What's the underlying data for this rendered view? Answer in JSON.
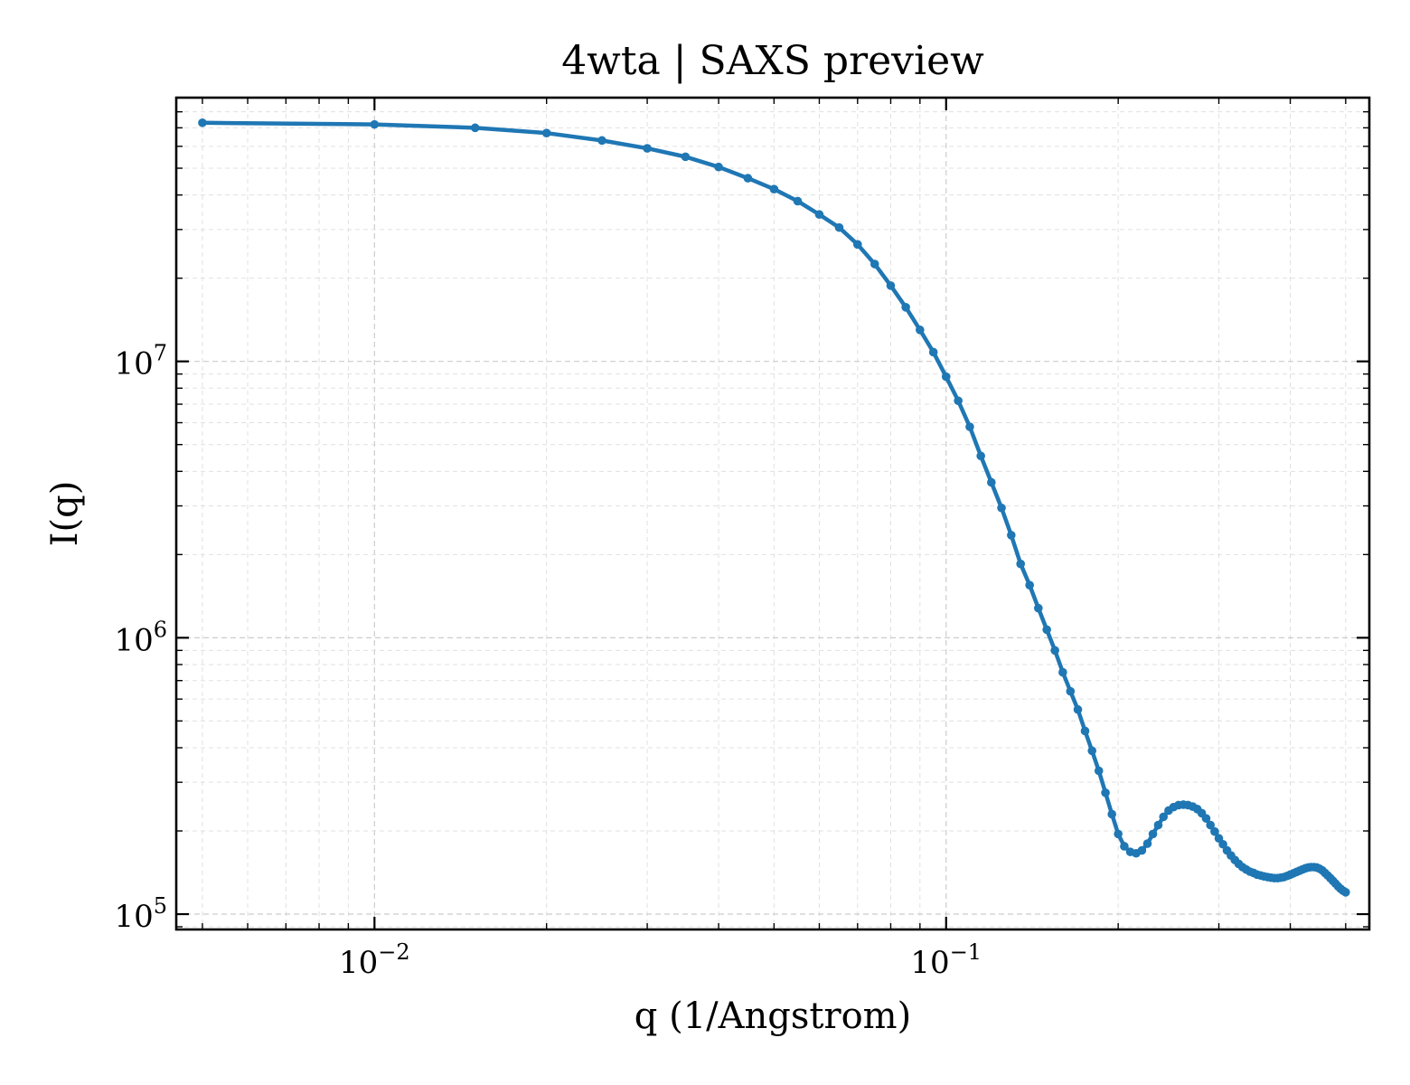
{
  "chart_data": {
    "type": "line",
    "title": "4wta | SAXS preview",
    "xlabel": "q (1/Angstrom)",
    "ylabel": "I(q)",
    "xscale": "log",
    "yscale": "log",
    "xlim": [
      0.0045,
      0.55
    ],
    "ylim": [
      88000,
      90000000
    ],
    "grid": true,
    "color": "#1f77b4",
    "x_ticks": [
      {
        "value": 0.01,
        "base": "10",
        "exp": "−2"
      },
      {
        "value": 0.1,
        "base": "10",
        "exp": "−1"
      }
    ],
    "y_ticks": [
      {
        "value": 100000,
        "base": "10",
        "exp": "5"
      },
      {
        "value": 1000000,
        "base": "10",
        "exp": "6"
      },
      {
        "value": 10000000,
        "base": "10",
        "exp": "7"
      }
    ],
    "series": [
      {
        "x": [
          0.005,
          0.01,
          0.015,
          0.02,
          0.025,
          0.03,
          0.035,
          0.04,
          0.045,
          0.05,
          0.055,
          0.06,
          0.065,
          0.07,
          0.075,
          0.08,
          0.085,
          0.09,
          0.095,
          0.1,
          0.105,
          0.11,
          0.115,
          0.12,
          0.125,
          0.13,
          0.135,
          0.14,
          0.145,
          0.15,
          0.155,
          0.16,
          0.165,
          0.17,
          0.175,
          0.18,
          0.185,
          0.19,
          0.195,
          0.2,
          0.205,
          0.21,
          0.215,
          0.22,
          0.225,
          0.23,
          0.235,
          0.24,
          0.245,
          0.25,
          0.255,
          0.26,
          0.265,
          0.27,
          0.275,
          0.28,
          0.285,
          0.29,
          0.295,
          0.3,
          0.305,
          0.31,
          0.315,
          0.32,
          0.325,
          0.33,
          0.335,
          0.34,
          0.345,
          0.35,
          0.355,
          0.36,
          0.365,
          0.37,
          0.375,
          0.38,
          0.385,
          0.39,
          0.395,
          0.4,
          0.405,
          0.41,
          0.415,
          0.42,
          0.425,
          0.43,
          0.435,
          0.44,
          0.445,
          0.45,
          0.455,
          0.46,
          0.465,
          0.47,
          0.475,
          0.48,
          0.485,
          0.49,
          0.495,
          0.5
        ],
        "y": [
          73000000,
          72000000,
          70000000,
          67000000,
          63000000,
          59000000,
          55000000,
          50500000,
          46000000,
          42000000,
          38000000,
          34000000,
          30500000,
          26500000,
          22500000,
          18800000,
          15700000,
          13000000,
          10800000,
          8800000,
          7200000,
          5800000,
          4550000,
          3650000,
          2950000,
          2350000,
          1850000,
          1550000,
          1280000,
          1070000,
          900000,
          750000,
          640000,
          550000,
          460000,
          390000,
          330000,
          275000,
          230000,
          195000,
          176000,
          168000,
          166000,
          170000,
          180000,
          195000,
          210000,
          225000,
          237000,
          244000,
          248000,
          249000,
          248000,
          245000,
          240000,
          232000,
          222000,
          210000,
          199000,
          188000,
          179000,
          170000,
          163000,
          157000,
          152000,
          148000,
          145000,
          142500,
          141000,
          139000,
          138000,
          137000,
          136200,
          135500,
          135000,
          135000,
          135500,
          136200,
          137500,
          139000,
          140500,
          142000,
          143500,
          145000,
          146500,
          147500,
          148000,
          148000,
          147500,
          146000,
          144000,
          141000,
          138000,
          135000,
          132000,
          129000,
          126000,
          123500,
          121500,
          120000
        ]
      }
    ]
  }
}
